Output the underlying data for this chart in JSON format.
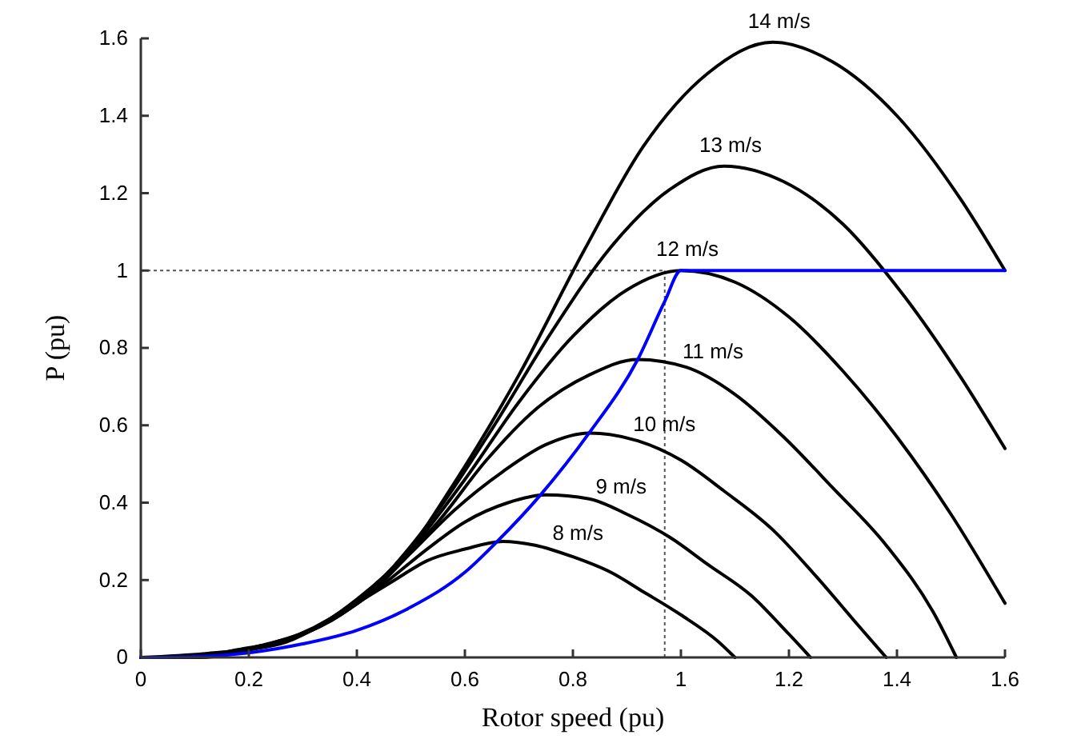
{
  "chart_data": {
    "type": "line",
    "xlabel": "Rotor speed (pu)",
    "ylabel": "P (pu)",
    "xlim": [
      0,
      1.6
    ],
    "xticks": [
      0,
      0.2,
      0.4,
      0.6,
      0.8,
      1,
      1.2,
      1.4,
      1.6
    ],
    "ylim": [
      0,
      1.6
    ],
    "yticks": [
      0,
      0.2,
      0.4,
      0.6,
      0.8,
      1,
      1.2,
      1.4,
      1.6
    ],
    "grid": false,
    "legend": false,
    "marker": "none",
    "line_style": "solid",
    "ref_lines": [
      {
        "axis": "y",
        "value": 1,
        "color": "#555555",
        "line_style": "dotted"
      },
      {
        "axis": "x",
        "value": 0.97,
        "color": "#555555",
        "line_style": "dotted"
      }
    ],
    "series": [
      {
        "name": "8 m/s",
        "color": "#000000",
        "x": [
          0,
          0.07,
          0.13,
          0.2,
          0.27,
          0.33,
          0.4,
          0.47,
          0.53,
          0.6,
          0.67,
          0.73,
          0.8,
          0.87,
          0.93,
          1.0,
          1.07,
          1.1
        ],
        "values": [
          0,
          0,
          0.01,
          0.02,
          0.04,
          0.08,
          0.14,
          0.2,
          0.25,
          0.28,
          0.3,
          0.29,
          0.26,
          0.22,
          0.17,
          0.11,
          0.04,
          0
        ]
      },
      {
        "name": "9 m/s",
        "color": "#000000",
        "x": [
          0,
          0.08,
          0.15,
          0.23,
          0.3,
          0.38,
          0.45,
          0.53,
          0.6,
          0.68,
          0.75,
          0.83,
          0.9,
          0.98,
          1.05,
          1.13,
          1.2,
          1.24
        ],
        "values": [
          0,
          0,
          0.01,
          0.03,
          0.06,
          0.12,
          0.19,
          0.28,
          0.35,
          0.4,
          0.42,
          0.41,
          0.37,
          0.31,
          0.24,
          0.16,
          0.06,
          0
        ]
      },
      {
        "name": "10 m/s",
        "color": "#000000",
        "x": [
          0,
          0.08,
          0.17,
          0.25,
          0.33,
          0.42,
          0.5,
          0.58,
          0.67,
          0.75,
          0.83,
          0.92,
          1.0,
          1.08,
          1.17,
          1.25,
          1.33,
          1.38
        ],
        "values": [
          0,
          0,
          0.01,
          0.04,
          0.08,
          0.16,
          0.27,
          0.38,
          0.48,
          0.55,
          0.58,
          0.56,
          0.51,
          0.43,
          0.33,
          0.21,
          0.08,
          0
        ]
      },
      {
        "name": "11 m/s",
        "color": "#000000",
        "x": [
          0,
          0.09,
          0.18,
          0.28,
          0.37,
          0.46,
          0.55,
          0.64,
          0.73,
          0.83,
          0.92,
          1.01,
          1.1,
          1.19,
          1.28,
          1.38,
          1.47,
          1.51
        ],
        "values": [
          0,
          0,
          0.02,
          0.05,
          0.11,
          0.22,
          0.35,
          0.51,
          0.64,
          0.73,
          0.77,
          0.75,
          0.68,
          0.57,
          0.44,
          0.29,
          0.11,
          0
        ]
      },
      {
        "name": "12 m/s",
        "color": "#000000",
        "x": [
          0,
          0.1,
          0.2,
          0.3,
          0.4,
          0.5,
          0.6,
          0.7,
          0.8,
          0.9,
          1.0,
          1.1,
          1.2,
          1.3,
          1.4,
          1.5,
          1.6
        ],
        "values": [
          0,
          0,
          0.02,
          0.06,
          0.15,
          0.28,
          0.46,
          0.66,
          0.83,
          0.95,
          1.0,
          0.97,
          0.88,
          0.74,
          0.57,
          0.37,
          0.14
        ]
      },
      {
        "name": "13 m/s",
        "color": "#000000",
        "x": [
          0,
          0.11,
          0.22,
          0.33,
          0.43,
          0.54,
          0.65,
          0.76,
          0.87,
          0.98,
          1.08,
          1.19,
          1.3,
          1.41,
          1.52,
          1.6
        ],
        "values": [
          0,
          0,
          0.03,
          0.08,
          0.18,
          0.36,
          0.59,
          0.84,
          1.06,
          1.21,
          1.27,
          1.23,
          1.12,
          0.94,
          0.72,
          0.54
        ]
      },
      {
        "name": "14 m/s",
        "color": "#000000",
        "x": [
          0,
          0.12,
          0.23,
          0.35,
          0.47,
          0.58,
          0.7,
          0.82,
          0.93,
          1.05,
          1.17,
          1.28,
          1.4,
          1.52,
          1.6
        ],
        "values": [
          0,
          0.01,
          0.03,
          0.1,
          0.23,
          0.45,
          0.73,
          1.05,
          1.32,
          1.51,
          1.59,
          1.54,
          1.4,
          1.18,
          1.0
        ]
      },
      {
        "color": "#0000ff",
        "x": [
          0,
          0.1,
          0.2,
          0.3,
          0.4,
          0.5,
          0.6,
          0.66,
          0.74,
          0.83,
          0.92,
          0.97,
          1.0,
          1.6
        ],
        "values": [
          0,
          0.002,
          0.012,
          0.035,
          0.07,
          0.13,
          0.22,
          0.3,
          0.42,
          0.58,
          0.77,
          0.92,
          1.0,
          1.0
        ]
      }
    ]
  }
}
